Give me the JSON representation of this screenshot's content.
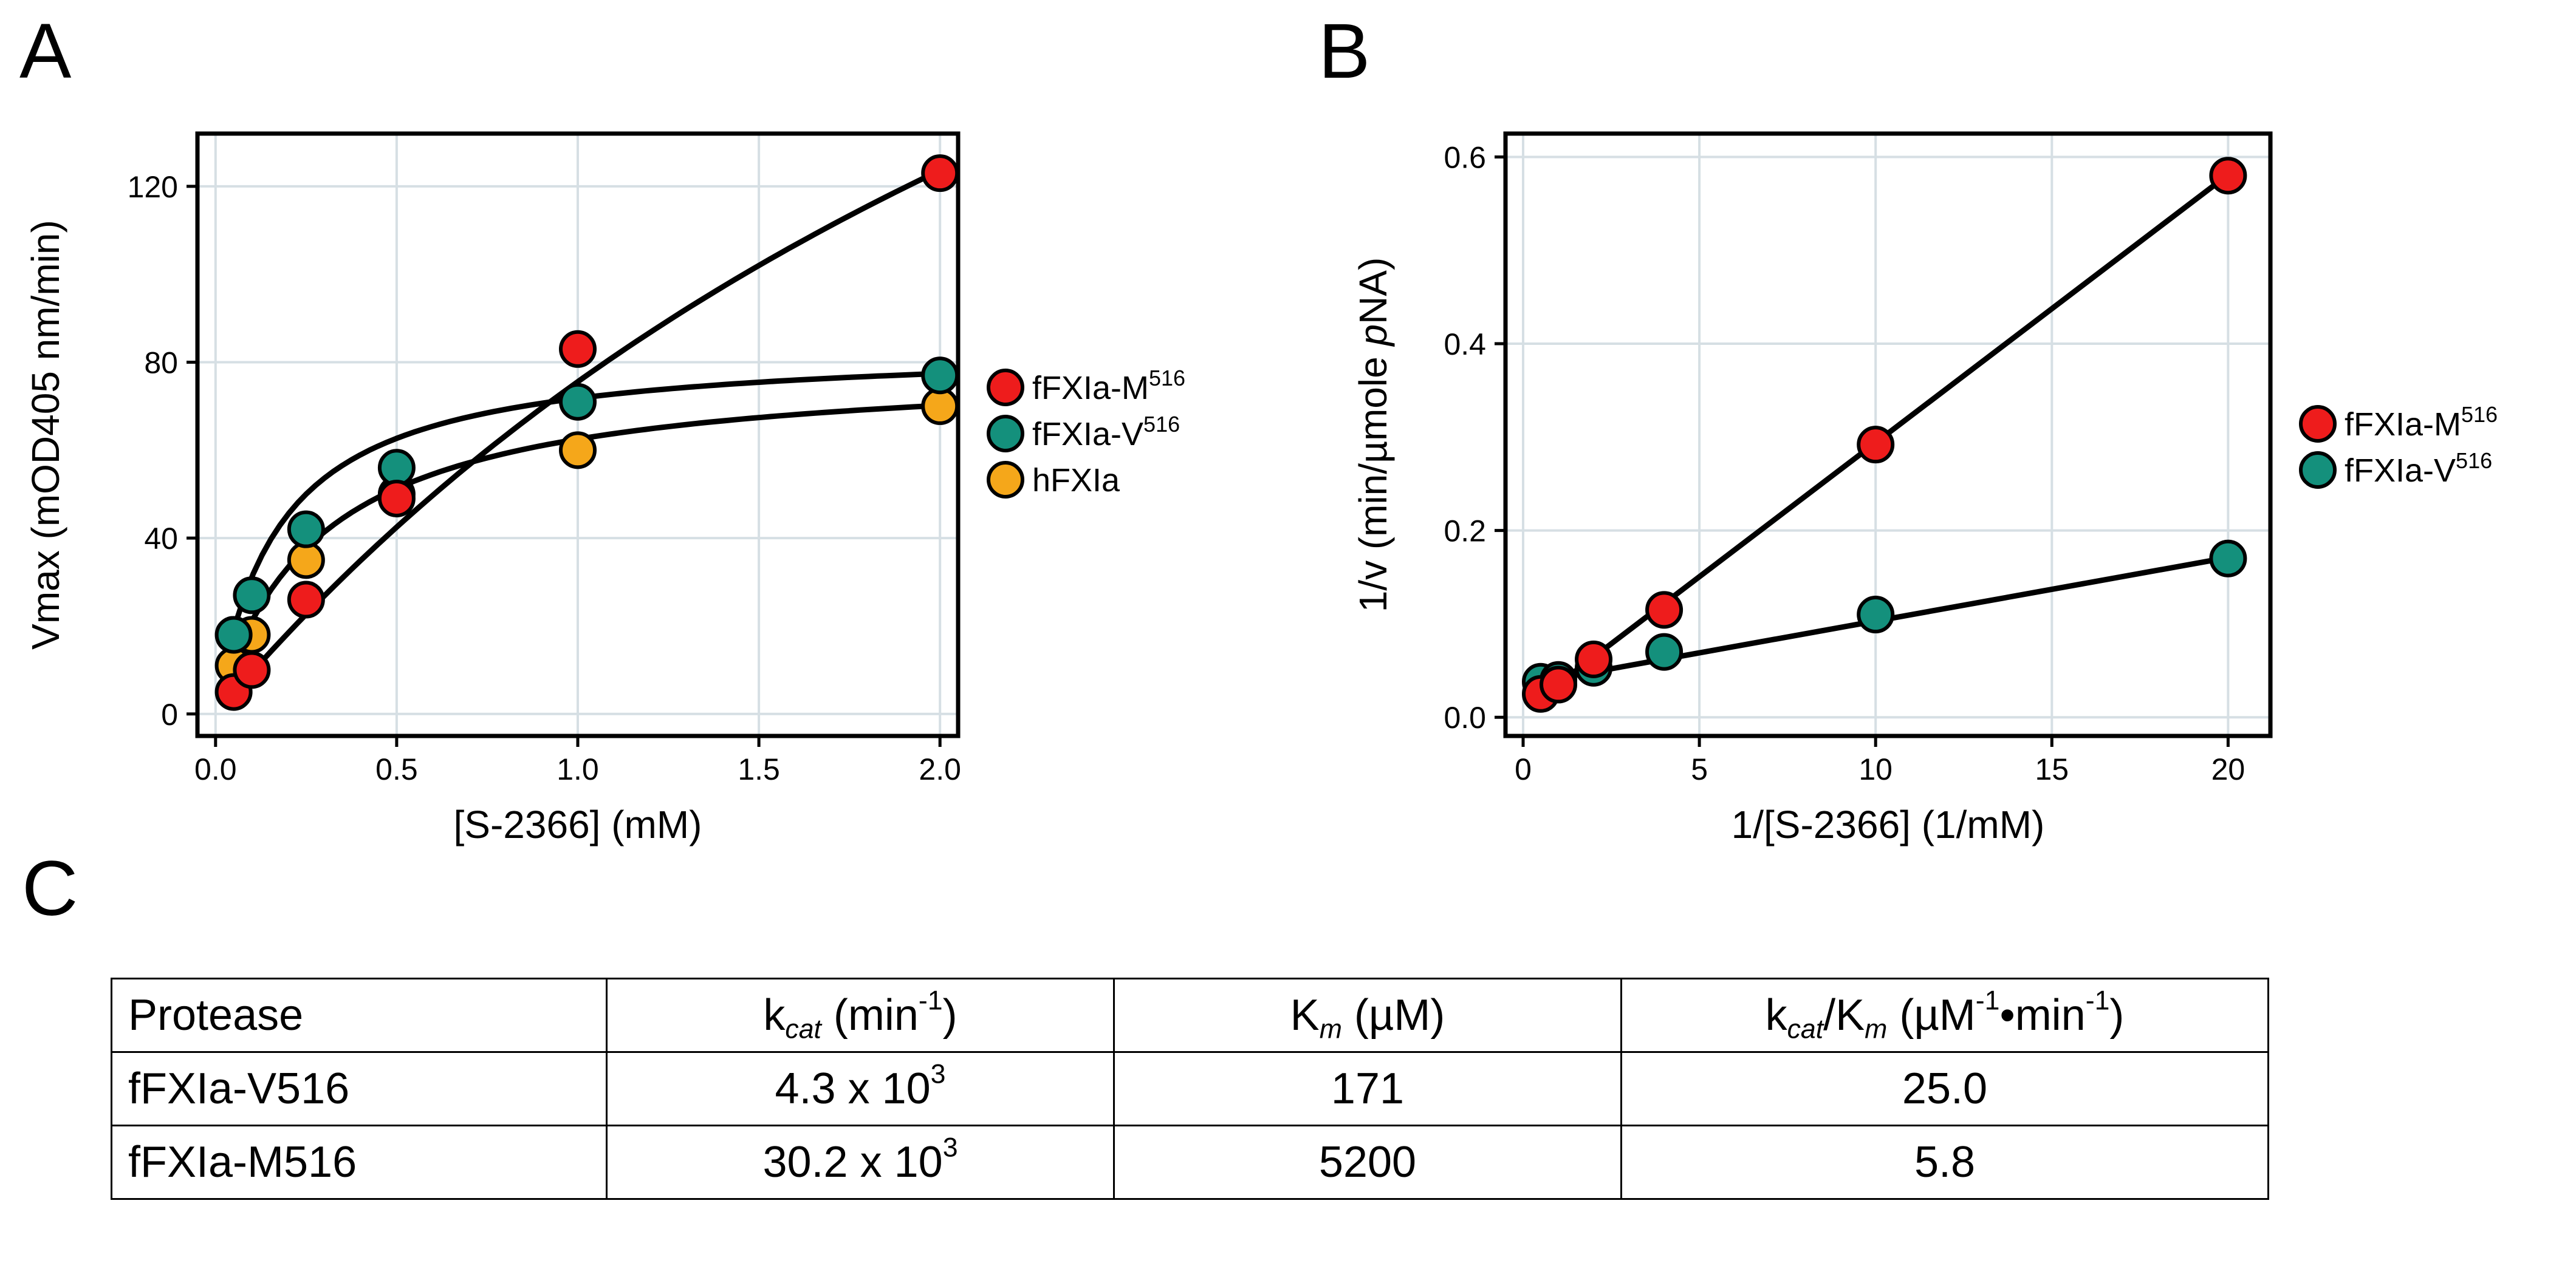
{
  "panels": {
    "a": "A",
    "b": "B",
    "c": "C"
  },
  "chart_data": [
    {
      "panel": "A",
      "type": "scatter",
      "title": "",
      "xlabel": "[S-2366] (mM)",
      "ylabel": "Vmax (mOD405 nm/min)",
      "xlim": [
        -0.05,
        2.05
      ],
      "ylim": [
        -5,
        132
      ],
      "xticks": [
        0.0,
        0.5,
        1.0,
        1.5,
        2.0
      ],
      "xtick_labels": [
        "0.0",
        "0.5",
        "1.0",
        "1.5",
        "2.0"
      ],
      "yticks": [
        0,
        40,
        80,
        120
      ],
      "ytick_labels": [
        "0",
        "40",
        "80",
        "120"
      ],
      "grid": true,
      "legend_position": "right",
      "series": [
        {
          "name": "fFXIa-M",
          "sup": "516",
          "color": "#ee1c1c",
          "x": [
            0.05,
            0.1,
            0.25,
            0.5,
            1.0,
            2.0
          ],
          "y": [
            5,
            10,
            26,
            49,
            83,
            123
          ],
          "fit": {
            "model": "michaelis-menten",
            "vmax": 340,
            "km": 3.5
          }
        },
        {
          "name": "fFXIa-V",
          "sup": "516",
          "color": "#14907c",
          "x": [
            0.05,
            0.1,
            0.25,
            0.5,
            1.0,
            2.0
          ],
          "y": [
            18,
            27,
            42,
            56,
            71,
            77
          ],
          "fit": {
            "model": "michaelis-menten",
            "vmax": 84,
            "km": 0.17
          }
        },
        {
          "name": "hFXIa",
          "sup": "",
          "color": "#f5a71a",
          "x": [
            0.05,
            0.1,
            0.25,
            0.5,
            1.0,
            2.0
          ],
          "y": [
            11,
            18,
            35,
            50,
            60,
            70
          ],
          "fit": {
            "model": "michaelis-menten",
            "vmax": 80,
            "km": 0.28
          }
        }
      ]
    },
    {
      "panel": "B",
      "type": "scatter",
      "title": "",
      "xlabel": "1/[S-2366] (1/mM)",
      "ylabel_parts": [
        "1/v (min/µmole ",
        "p",
        "NA)"
      ],
      "xlim": [
        -0.5,
        21.2
      ],
      "ylim": [
        -0.02,
        0.625
      ],
      "xticks": [
        0,
        5,
        10,
        15,
        20
      ],
      "xtick_labels": [
        "0",
        "5",
        "10",
        "15",
        "20"
      ],
      "yticks": [
        0.0,
        0.2,
        0.4,
        0.6
      ],
      "ytick_labels": [
        "0.0",
        "0.2",
        "0.4",
        "0.6"
      ],
      "grid": true,
      "legend_position": "right",
      "series": [
        {
          "name": "fFXIa-M",
          "sup": "516",
          "color": "#ee1c1c",
          "x": [
            0.5,
            1,
            2,
            4,
            10,
            20
          ],
          "y": [
            0.025,
            0.035,
            0.062,
            0.115,
            0.292,
            0.58
          ],
          "fit": {
            "model": "linear",
            "slope": 0.0287,
            "intercept": 0.007
          }
        },
        {
          "name": "fFXIa-V",
          "sup": "516",
          "color": "#14907c",
          "x": [
            0.5,
            1,
            2,
            4,
            10,
            20
          ],
          "y": [
            0.038,
            0.04,
            0.053,
            0.07,
            0.11,
            0.17
          ],
          "fit": {
            "model": "linear",
            "slope": 0.0068,
            "intercept": 0.035
          }
        }
      ]
    }
  ],
  "table": {
    "headers": [
      {
        "text": "Protease",
        "sub": "",
        "after": "",
        "sup": "",
        "tail": "",
        "sub2": "",
        "after2": "",
        "sup2": "",
        "tail2": ""
      },
      {
        "text": "k",
        "sub": "cat",
        "after": " (min",
        "sup": "-1",
        "tail": ")",
        "sub2": "",
        "after2": "",
        "sup2": "",
        "tail2": ""
      },
      {
        "text": "K",
        "sub": "m",
        "after": " (µM)",
        "sup": "",
        "tail": "",
        "sub2": "",
        "after2": "",
        "sup2": "",
        "tail2": ""
      },
      {
        "text": "k",
        "sub": "cat",
        "after": "/K",
        "sup": "",
        "tail": "",
        "sub2": "m",
        "after2": " (µM",
        "sup2": "-1",
        "tail2": "•min-1)"
      }
    ],
    "header4_sup3": "-1",
    "rows": [
      {
        "protease": "fFXIa-V516",
        "kcat": "4.3 x 10",
        "kcat_exp": "3",
        "km": "171",
        "ratio": "25.0"
      },
      {
        "protease": "fFXIa-M516",
        "kcat": "30.2 x 10",
        "kcat_exp": "3",
        "km": "5200",
        "ratio": "5.8"
      }
    ]
  }
}
